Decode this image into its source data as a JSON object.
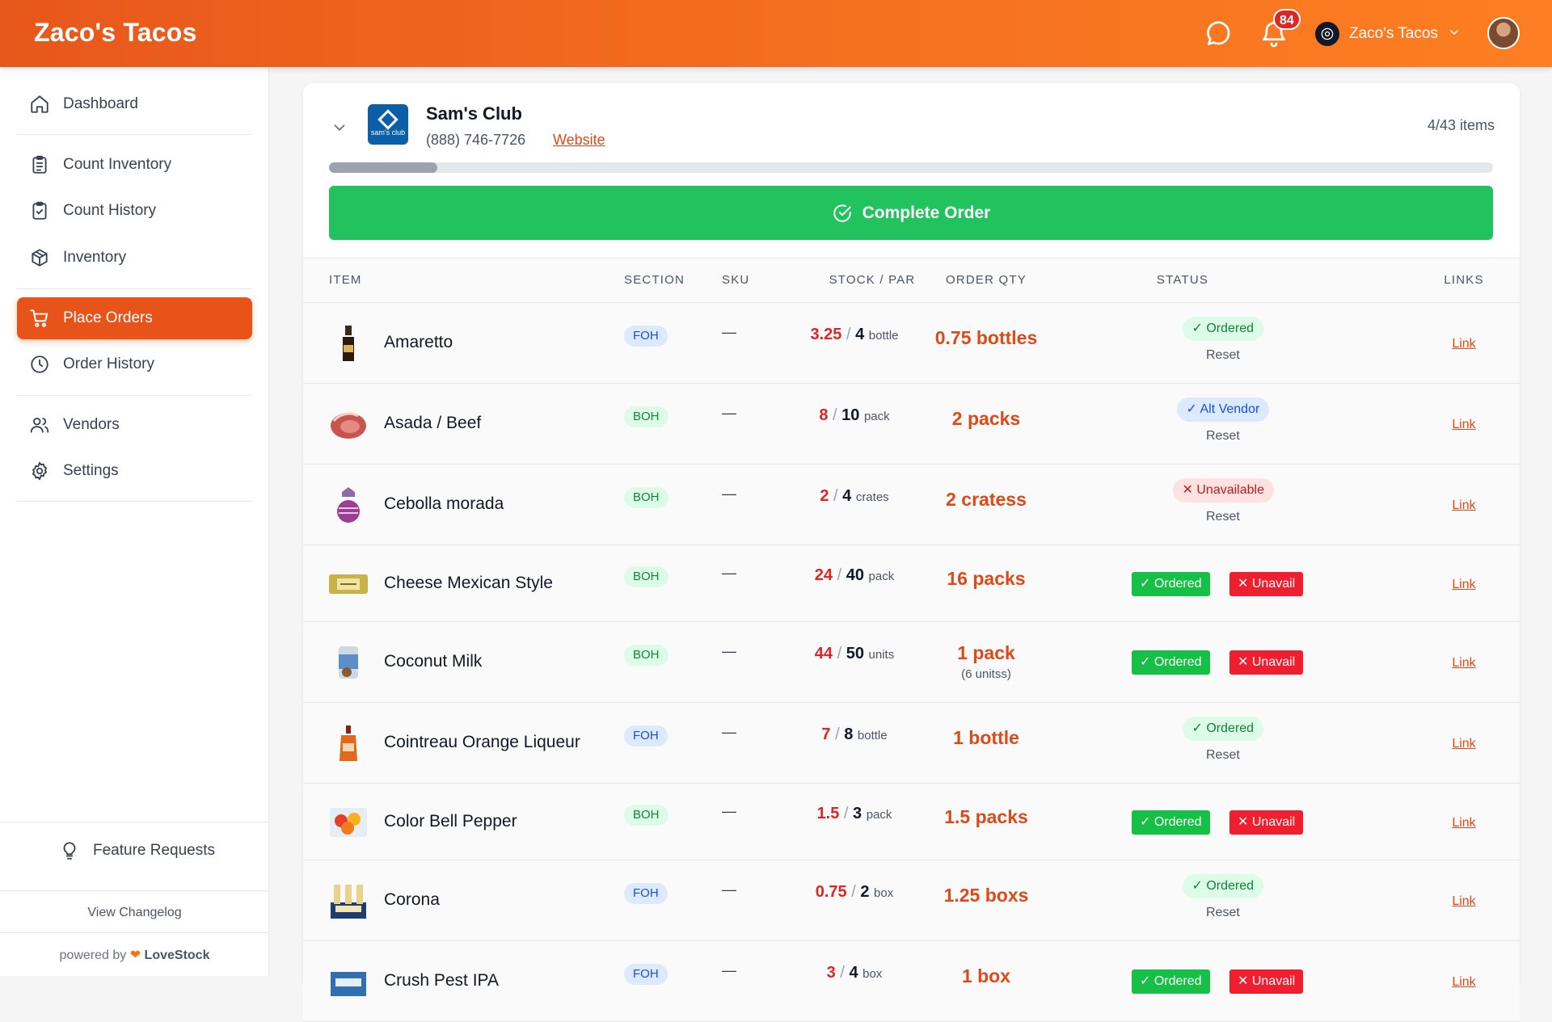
{
  "app": {
    "brand": "Zaco's Tacos",
    "notification_count": "84",
    "store_name": "Zaco's Tacos"
  },
  "sidebar": {
    "items": [
      {
        "label": "Dashboard",
        "icon": "home-icon"
      },
      {
        "label": "Count Inventory",
        "icon": "clipboard-list-icon"
      },
      {
        "label": "Count History",
        "icon": "clipboard-check-icon"
      },
      {
        "label": "Inventory",
        "icon": "box-icon"
      },
      {
        "label": "Place Orders",
        "icon": "cart-icon",
        "active": true
      },
      {
        "label": "Order History",
        "icon": "clock-icon"
      },
      {
        "label": "Vendors",
        "icon": "users-icon"
      },
      {
        "label": "Settings",
        "icon": "gear-icon"
      }
    ],
    "feature_requests": "Feature Requests",
    "changelog": "View Changelog",
    "powered_by": "powered by",
    "powered_brand": "LoveStock"
  },
  "vendor": {
    "name": "Sam's Club",
    "logo_text": "sam's club",
    "phone": "(888) 746-7726",
    "website_label": "Website",
    "item_count": "4/43 items",
    "progress": 0.093,
    "complete_label": "Complete Order"
  },
  "table": {
    "headers": [
      "ITEM",
      "SECTION",
      "SKU",
      "STOCK / PAR",
      "ORDER QTY",
      "STATUS",
      "LINKS"
    ],
    "rows": [
      {
        "name": "Amaretto",
        "section": "FOH",
        "sku": "—",
        "stock": "3.25",
        "par": "4",
        "unit": "bottle",
        "qty": "0.75 bottles",
        "qty_sub": "",
        "status": "Ordered",
        "status_type": "ordered",
        "reset": "Reset",
        "link": "Link",
        "thumb": "bottle"
      },
      {
        "name": "Asada / Beef",
        "section": "BOH",
        "sku": "—",
        "stock": "8",
        "par": "10",
        "unit": "pack",
        "qty": "2 packs",
        "qty_sub": "",
        "status": "Alt Vendor",
        "status_type": "alt",
        "reset": "Reset",
        "link": "Link",
        "thumb": "beef"
      },
      {
        "name": "Cebolla morada",
        "section": "BOH",
        "sku": "—",
        "stock": "2",
        "par": "4",
        "unit": "crates",
        "qty": "2 cratess",
        "qty_sub": "",
        "status": "Unavailable",
        "status_type": "unavail",
        "reset": "Reset",
        "link": "Link",
        "thumb": "onion"
      },
      {
        "name": "Cheese Mexican Style",
        "section": "BOH",
        "sku": "—",
        "stock": "24",
        "par": "40",
        "unit": "pack",
        "qty": "16 packs",
        "qty_sub": "",
        "status": "",
        "status_type": "buttons",
        "ordered_btn": "Ordered",
        "unavail_btn": "Unavail",
        "link": "Link",
        "thumb": "cheese"
      },
      {
        "name": "Coconut Milk",
        "section": "BOH",
        "sku": "—",
        "stock": "44",
        "par": "50",
        "unit": "units",
        "qty": "1 pack",
        "qty_sub": "(6 unitss)",
        "status": "",
        "status_type": "buttons",
        "ordered_btn": "Ordered",
        "unavail_btn": "Unavail",
        "link": "Link",
        "thumb": "can"
      },
      {
        "name": "Cointreau Orange Liqueur",
        "section": "FOH",
        "sku": "—",
        "stock": "7",
        "par": "8",
        "unit": "bottle",
        "qty": "1 bottle",
        "qty_sub": "",
        "status": "Ordered",
        "status_type": "ordered",
        "reset": "Reset",
        "link": "Link",
        "thumb": "orange-bottle"
      },
      {
        "name": "Color Bell Pepper",
        "section": "BOH",
        "sku": "—",
        "stock": "1.5",
        "par": "3",
        "unit": "pack",
        "qty": "1.5 packs",
        "qty_sub": "",
        "status": "",
        "status_type": "buttons",
        "ordered_btn": "Ordered",
        "unavail_btn": "Unavail",
        "link": "Link",
        "thumb": "peppers"
      },
      {
        "name": "Corona",
        "section": "FOH",
        "sku": "—",
        "stock": "0.75",
        "par": "2",
        "unit": "box",
        "qty": "1.25 boxs",
        "qty_sub": "",
        "status": "Ordered",
        "status_type": "ordered",
        "reset": "Reset",
        "link": "Link",
        "thumb": "beer"
      },
      {
        "name": "Crush Pest IPA",
        "section": "FOH",
        "sku": "—",
        "stock": "3",
        "par": "4",
        "unit": "box",
        "qty": "1 box",
        "qty_sub": "",
        "status": "",
        "status_type": "buttons",
        "ordered_btn": "Ordered",
        "unavail_btn": "Unavail",
        "link": "Link",
        "thumb": "box"
      }
    ]
  }
}
